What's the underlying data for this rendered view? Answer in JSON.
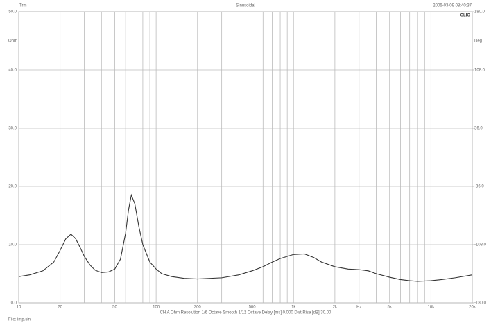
{
  "chart_data": {
    "type": "line",
    "title": "Sinusoidal",
    "top_left_label": "Trm",
    "timestamp": "2006-03-09 08:40:37",
    "brand": "CLIO",
    "ylabel": "Ohm",
    "y2label": "Deg",
    "footer": "CH A   Ohm   Resolution 1/6 Octave   Smooth 1/12 Octave   Delay [ms] 0.000   Dist Rise [dB] 30.00",
    "file": "File: imp.sini",
    "log_x": true,
    "grid": true,
    "xlim": [
      10,
      20000
    ],
    "ylim": [
      0,
      50
    ],
    "y2lim": [
      -180,
      180
    ],
    "xticks": [
      10,
      20,
      50,
      100,
      200,
      500,
      {
        "value": 1000,
        "label": "1k"
      },
      {
        "value": 2000,
        "label": "2k"
      },
      {
        "value": 3000,
        "label": "Hz"
      },
      {
        "value": 5000,
        "label": "5k"
      },
      {
        "value": 10000,
        "label": "10k"
      },
      {
        "value": 20000,
        "label": "20k"
      }
    ],
    "xgrid": [
      30,
      40,
      60,
      70,
      80,
      90,
      300,
      400,
      600,
      700,
      800,
      900,
      4000,
      6000,
      7000,
      8000,
      9000
    ],
    "yticks": [
      {
        "value": 0,
        "label": "0.0"
      },
      {
        "value": 10,
        "label": "10.0"
      },
      {
        "value": 20,
        "label": "20.0"
      },
      {
        "value": 30,
        "label": "30.0"
      },
      {
        "value": 40,
        "label": "40.0"
      },
      {
        "value": 50,
        "label": "50.0"
      }
    ],
    "y2ticks": [
      {
        "value": -180,
        "label": "-180.0"
      },
      {
        "value": -108,
        "label": "-108.0"
      },
      {
        "value": -36,
        "label": "-36.0"
      },
      {
        "value": 36,
        "label": "36.0"
      },
      {
        "value": 108,
        "label": "108.0"
      },
      {
        "value": 180,
        "label": "180.0"
      }
    ],
    "x": [
      10,
      12,
      15,
      18,
      20,
      22,
      24,
      26,
      28,
      30,
      33,
      36,
      40,
      45,
      50,
      55,
      60,
      63,
      66,
      70,
      75,
      80,
      90,
      100,
      110,
      130,
      160,
      200,
      300,
      400,
      500,
      600,
      700,
      800,
      1000,
      1200,
      1400,
      1600,
      2000,
      2500,
      3000,
      3500,
      4000,
      5000,
      6000,
      7000,
      8000,
      10000,
      12000,
      15000,
      20000
    ],
    "series": [
      {
        "color": "#333333",
        "values": [
          4.5,
          4.8,
          5.5,
          7,
          9,
          11,
          11.8,
          11,
          9.5,
          8,
          6.5,
          5.6,
          5.2,
          5.3,
          5.8,
          7.5,
          12,
          16,
          18.5,
          17,
          13,
          10,
          7,
          5.8,
          5,
          4.5,
          4.2,
          4.1,
          4.3,
          4.8,
          5.5,
          6.2,
          7,
          7.6,
          8.3,
          8.4,
          7.8,
          7,
          6.2,
          5.8,
          5.7,
          5.5,
          5,
          4.4,
          4,
          3.8,
          3.7,
          3.8,
          4,
          4.3,
          4.8
        ]
      }
    ]
  }
}
